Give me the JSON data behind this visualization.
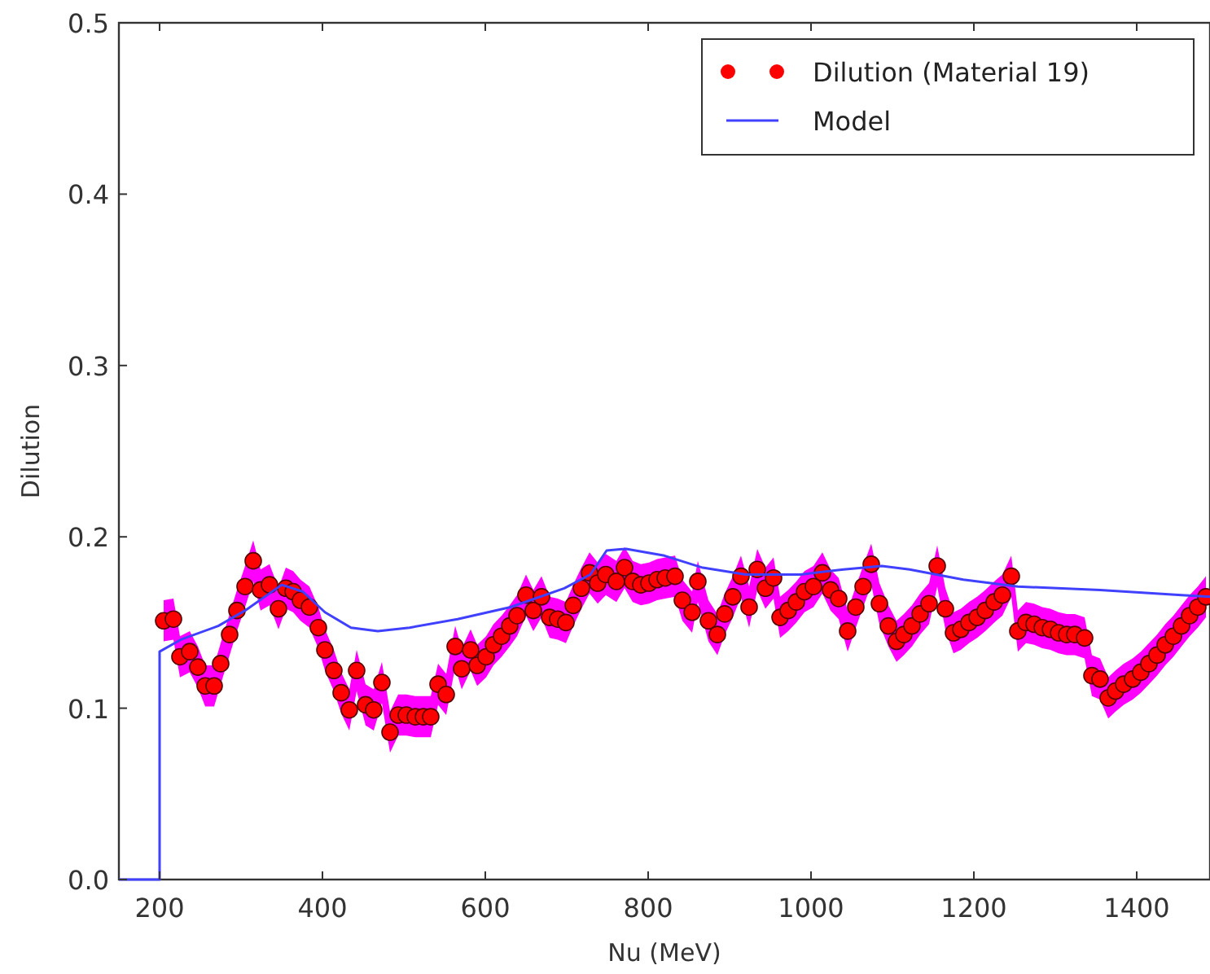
{
  "chart_data": {
    "type": "scatter",
    "xlabel": "Nu (MeV)",
    "ylabel": "Dilution",
    "xlim": [
      150,
      1490
    ],
    "ylim": [
      0,
      0.5
    ],
    "xticks": [
      200,
      400,
      600,
      800,
      1000,
      1200,
      1400
    ],
    "yticks": [
      {
        "value": 0,
        "label": "0.0"
      },
      0.1,
      0.2,
      0.3,
      0.4,
      0.5
    ],
    "legend": "top right",
    "series": [
      {
        "name": "Dilution (Material 19)",
        "marker": "circle",
        "color": "#ff0000",
        "x": [
          205,
          217,
          225,
          237,
          247,
          256,
          267,
          275,
          286,
          295,
          305,
          315,
          324,
          335,
          346,
          355,
          364,
          373,
          384,
          395,
          403,
          414,
          423,
          433,
          442,
          453,
          463,
          473,
          483,
          493,
          503,
          514,
          524,
          533,
          542,
          552,
          563,
          571,
          582,
          590,
          601,
          610,
          620,
          630,
          639,
          650,
          659,
          669,
          679,
          689,
          699,
          708,
          718,
          728,
          738,
          748,
          761,
          771,
          781,
          791,
          801,
          811,
          821,
          833,
          842,
          854,
          861,
          874,
          885,
          894,
          904,
          914,
          924,
          934,
          944,
          954,
          962,
          972,
          982,
          992,
          1003,
          1014,
          1024,
          1034,
          1045,
          1055,
          1064,
          1074,
          1084,
          1095,
          1105,
          1114,
          1124,
          1134,
          1145,
          1155,
          1165,
          1175,
          1184,
          1194,
          1204,
          1214,
          1225,
          1235,
          1246,
          1254,
          1264,
          1274,
          1284,
          1294,
          1304,
          1314,
          1324,
          1336,
          1345,
          1355,
          1365,
          1374,
          1384,
          1395,
          1405,
          1415,
          1425,
          1435,
          1445,
          1455,
          1465,
          1475,
          1485
        ],
        "values": [
          0.151,
          0.152,
          0.13,
          0.133,
          0.124,
          0.113,
          0.113,
          0.126,
          0.143,
          0.157,
          0.171,
          0.186,
          0.169,
          0.172,
          0.158,
          0.17,
          0.168,
          0.163,
          0.159,
          0.147,
          0.134,
          0.122,
          0.109,
          0.099,
          0.122,
          0.102,
          0.099,
          0.115,
          0.086,
          0.096,
          0.096,
          0.095,
          0.095,
          0.095,
          0.114,
          0.108,
          0.136,
          0.123,
          0.134,
          0.125,
          0.13,
          0.137,
          0.142,
          0.148,
          0.154,
          0.166,
          0.157,
          0.165,
          0.153,
          0.152,
          0.15,
          0.16,
          0.17,
          0.179,
          0.173,
          0.178,
          0.174,
          0.182,
          0.174,
          0.172,
          0.173,
          0.175,
          0.176,
          0.177,
          0.163,
          0.156,
          0.174,
          0.151,
          0.143,
          0.155,
          0.165,
          0.177,
          0.159,
          0.181,
          0.17,
          0.176,
          0.153,
          0.157,
          0.162,
          0.168,
          0.171,
          0.179,
          0.169,
          0.164,
          0.145,
          0.159,
          0.171,
          0.184,
          0.161,
          0.148,
          0.139,
          0.143,
          0.148,
          0.155,
          0.161,
          0.183,
          0.158,
          0.144,
          0.146,
          0.15,
          0.153,
          0.157,
          0.162,
          0.166,
          0.177,
          0.145,
          0.15,
          0.149,
          0.147,
          0.146,
          0.144,
          0.143,
          0.143,
          0.141,
          0.119,
          0.117,
          0.106,
          0.11,
          0.114,
          0.117,
          0.121,
          0.126,
          0.131,
          0.137,
          0.142,
          0.148,
          0.154,
          0.159,
          0.165
        ],
        "lower": [
          0.139,
          0.14,
          0.118,
          0.121,
          0.112,
          0.101,
          0.101,
          0.114,
          0.131,
          0.145,
          0.159,
          0.174,
          0.157,
          0.16,
          0.146,
          0.158,
          0.156,
          0.151,
          0.147,
          0.135,
          0.122,
          0.11,
          0.097,
          0.087,
          0.11,
          0.09,
          0.087,
          0.103,
          0.074,
          0.084,
          0.084,
          0.083,
          0.083,
          0.083,
          0.102,
          0.096,
          0.124,
          0.111,
          0.122,
          0.113,
          0.118,
          0.125,
          0.13,
          0.136,
          0.142,
          0.154,
          0.145,
          0.153,
          0.141,
          0.14,
          0.138,
          0.148,
          0.158,
          0.167,
          0.161,
          0.166,
          0.162,
          0.17,
          0.162,
          0.16,
          0.161,
          0.163,
          0.164,
          0.165,
          0.151,
          0.144,
          0.162,
          0.139,
          0.131,
          0.143,
          0.153,
          0.165,
          0.147,
          0.169,
          0.158,
          0.164,
          0.141,
          0.145,
          0.15,
          0.156,
          0.159,
          0.167,
          0.157,
          0.152,
          0.133,
          0.147,
          0.159,
          0.172,
          0.149,
          0.136,
          0.127,
          0.131,
          0.136,
          0.143,
          0.149,
          0.171,
          0.146,
          0.132,
          0.134,
          0.138,
          0.141,
          0.145,
          0.15,
          0.154,
          0.165,
          0.133,
          0.138,
          0.137,
          0.135,
          0.134,
          0.132,
          0.131,
          0.131,
          0.129,
          0.107,
          0.105,
          0.094,
          0.098,
          0.102,
          0.105,
          0.109,
          0.114,
          0.119,
          0.125,
          0.13,
          0.136,
          0.142,
          0.147,
          0.153
        ],
        "upper": [
          0.163,
          0.164,
          0.142,
          0.145,
          0.136,
          0.125,
          0.125,
          0.138,
          0.155,
          0.169,
          0.183,
          0.198,
          0.181,
          0.184,
          0.17,
          0.182,
          0.18,
          0.175,
          0.171,
          0.159,
          0.146,
          0.134,
          0.121,
          0.111,
          0.134,
          0.114,
          0.111,
          0.127,
          0.098,
          0.108,
          0.108,
          0.107,
          0.107,
          0.107,
          0.126,
          0.12,
          0.148,
          0.135,
          0.146,
          0.137,
          0.142,
          0.149,
          0.154,
          0.16,
          0.166,
          0.178,
          0.169,
          0.177,
          0.165,
          0.164,
          0.162,
          0.172,
          0.182,
          0.191,
          0.185,
          0.19,
          0.186,
          0.194,
          0.186,
          0.184,
          0.185,
          0.187,
          0.188,
          0.189,
          0.175,
          0.168,
          0.186,
          0.163,
          0.155,
          0.167,
          0.177,
          0.189,
          0.171,
          0.193,
          0.182,
          0.188,
          0.165,
          0.169,
          0.174,
          0.18,
          0.183,
          0.191,
          0.181,
          0.176,
          0.157,
          0.171,
          0.183,
          0.196,
          0.173,
          0.16,
          0.151,
          0.155,
          0.16,
          0.167,
          0.173,
          0.195,
          0.17,
          0.156,
          0.158,
          0.162,
          0.165,
          0.169,
          0.174,
          0.178,
          0.189,
          0.157,
          0.162,
          0.161,
          0.159,
          0.158,
          0.156,
          0.155,
          0.155,
          0.153,
          0.131,
          0.129,
          0.118,
          0.122,
          0.126,
          0.129,
          0.133,
          0.138,
          0.143,
          0.149,
          0.154,
          0.16,
          0.166,
          0.171,
          0.177
        ]
      },
      {
        "name": "Model",
        "type": "line",
        "line_style": "solid",
        "color": "#4040ff",
        "x": [
          150,
          200,
          200,
          226,
          272,
          305,
          350,
          376,
          403,
          435,
          468,
          507,
          566,
          631,
          697,
          729,
          749,
          773,
          820,
          867,
          920,
          987,
          1040,
          1087,
          1121,
          1187,
          1254,
          1355,
          1455,
          1490
        ],
        "values": [
          0,
          0,
          0.133,
          0.14,
          0.148,
          0.157,
          0.172,
          0.168,
          0.156,
          0.147,
          0.145,
          0.147,
          0.152,
          0.159,
          0.17,
          0.178,
          0.192,
          0.193,
          0.189,
          0.182,
          0.178,
          0.178,
          0.181,
          0.183,
          0.181,
          0.175,
          0.171,
          0.169,
          0.166,
          0.165
        ]
      }
    ]
  }
}
